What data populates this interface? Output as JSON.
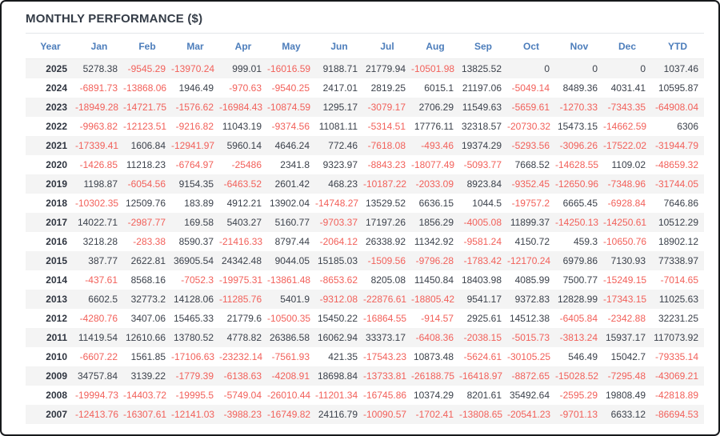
{
  "title": "MONTHLY PERFORMANCE ($)",
  "colors": {
    "header_text": "#4c7dbb",
    "negative": "#f2605a",
    "positive": "#3b414b",
    "year_text": "#2f3540",
    "row_stripe": "#f4f4f4",
    "title_text": "#343c47"
  },
  "table": {
    "columns": [
      "Year",
      "Jan",
      "Feb",
      "Mar",
      "Apr",
      "May",
      "Jun",
      "Jul",
      "Aug",
      "Sep",
      "Oct",
      "Nov",
      "Dec",
      "YTD"
    ],
    "rows": [
      {
        "year": "2025",
        "values": [
          "5278.38",
          "-9545.29",
          "-13970.24",
          "999.01",
          "-16016.59",
          "9188.71",
          "21779.94",
          "-10501.98",
          "13825.52",
          "0",
          "0",
          "0",
          "1037.46"
        ]
      },
      {
        "year": "2024",
        "values": [
          "-6891.73",
          "-13868.06",
          "1946.49",
          "-970.63",
          "-9540.25",
          "2417.01",
          "2819.25",
          "6015.1",
          "21197.06",
          "-5049.14",
          "8489.36",
          "4031.41",
          "10595.87"
        ]
      },
      {
        "year": "2023",
        "values": [
          "-18949.28",
          "-14721.75",
          "-1576.62",
          "-16984.43",
          "-10874.59",
          "1295.17",
          "-3079.17",
          "2706.29",
          "11549.63",
          "-5659.61",
          "-1270.33",
          "-7343.35",
          "-64908.04"
        ]
      },
      {
        "year": "2022",
        "values": [
          "-9963.82",
          "-12123.51",
          "-9216.82",
          "11043.19",
          "-9374.56",
          "11081.11",
          "-5314.51",
          "17776.11",
          "32318.57",
          "-20730.32",
          "15473.15",
          "-14662.59",
          "6306"
        ]
      },
      {
        "year": "2021",
        "values": [
          "-17339.41",
          "1606.84",
          "-12941.97",
          "5960.14",
          "4646.24",
          "772.46",
          "-7618.08",
          "-493.46",
          "19374.29",
          "-5293.56",
          "-3096.26",
          "-17522.02",
          "-31944.79"
        ]
      },
      {
        "year": "2020",
        "values": [
          "-1426.85",
          "11218.23",
          "-6764.97",
          "-25486",
          "2341.8",
          "9323.97",
          "-8843.23",
          "-18077.49",
          "-5093.77",
          "7668.52",
          "-14628.55",
          "1109.02",
          "-48659.32"
        ]
      },
      {
        "year": "2019",
        "values": [
          "1198.87",
          "-6054.56",
          "9154.35",
          "-6463.52",
          "2601.42",
          "468.23",
          "-10187.22",
          "-2033.09",
          "8923.84",
          "-9352.45",
          "-12650.96",
          "-7348.96",
          "-31744.05"
        ]
      },
      {
        "year": "2018",
        "values": [
          "-10302.35",
          "12509.76",
          "183.89",
          "4912.21",
          "13902.04",
          "-14748.27",
          "13529.52",
          "6636.15",
          "1044.5",
          "-19757.2",
          "6665.45",
          "-6928.84",
          "7646.86"
        ]
      },
      {
        "year": "2017",
        "values": [
          "14022.71",
          "-2987.77",
          "169.58",
          "5403.27",
          "5160.77",
          "-9703.37",
          "17197.26",
          "1856.29",
          "-4005.08",
          "11899.37",
          "-14250.13",
          "-14250.61",
          "10512.29"
        ]
      },
      {
        "year": "2016",
        "values": [
          "3218.28",
          "-283.38",
          "8590.37",
          "-21416.33",
          "8797.44",
          "-2064.12",
          "26338.92",
          "11342.92",
          "-9581.24",
          "4150.72",
          "459.3",
          "-10650.76",
          "18902.12"
        ]
      },
      {
        "year": "2015",
        "values": [
          "387.77",
          "2622.81",
          "36905.54",
          "24342.48",
          "9044.05",
          "15185.03",
          "-1509.56",
          "-9796.28",
          "-1783.42",
          "-12170.24",
          "6979.86",
          "7130.93",
          "77338.97"
        ]
      },
      {
        "year": "2014",
        "values": [
          "-437.61",
          "8568.16",
          "-7052.3",
          "-19975.31",
          "-13861.48",
          "-8653.62",
          "8205.08",
          "11450.84",
          "18403.98",
          "4085.99",
          "7500.77",
          "-15249.15",
          "-7014.65"
        ]
      },
      {
        "year": "2013",
        "values": [
          "6602.5",
          "32773.2",
          "14128.06",
          "-11285.76",
          "5401.9",
          "-9312.08",
          "-22876.61",
          "-18805.42",
          "9541.17",
          "9372.83",
          "12828.99",
          "-17343.15",
          "11025.63"
        ]
      },
      {
        "year": "2012",
        "values": [
          "-4280.76",
          "3407.06",
          "15465.33",
          "21779.6",
          "-10500.35",
          "15450.22",
          "-16864.55",
          "-914.57",
          "2925.61",
          "14512.38",
          "-6405.84",
          "-2342.88",
          "32231.25"
        ]
      },
      {
        "year": "2011",
        "values": [
          "11419.54",
          "12610.66",
          "13780.52",
          "4778.82",
          "26386.58",
          "16062.94",
          "33373.17",
          "-6408.36",
          "-2038.15",
          "-5015.73",
          "-3813.24",
          "15937.17",
          "117073.92"
        ]
      },
      {
        "year": "2010",
        "values": [
          "-6607.22",
          "1561.85",
          "-17106.63",
          "-23232.14",
          "-7561.93",
          "421.35",
          "-17543.23",
          "10873.48",
          "-5624.61",
          "-30105.25",
          "546.49",
          "15042.7",
          "-79335.14"
        ]
      },
      {
        "year": "2009",
        "values": [
          "34757.84",
          "3139.22",
          "-1779.39",
          "-6138.63",
          "-4208.91",
          "18698.84",
          "-13733.81",
          "-26188.75",
          "-16418.97",
          "-8872.65",
          "-15028.52",
          "-7295.48",
          "-43069.21"
        ]
      },
      {
        "year": "2008",
        "values": [
          "-19994.73",
          "-14403.72",
          "-19995.5",
          "-5749.04",
          "-26010.44",
          "-11201.34",
          "-16745.86",
          "10374.29",
          "8201.61",
          "35492.64",
          "-2595.29",
          "19808.49",
          "-42818.89"
        ]
      },
      {
        "year": "2007",
        "values": [
          "-12413.76",
          "-16307.61",
          "-12141.03",
          "-3988.23",
          "-16749.82",
          "24116.79",
          "-10090.57",
          "-1702.41",
          "-13808.65",
          "-20541.23",
          "-9701.13",
          "6633.12",
          "-86694.53"
        ]
      }
    ]
  }
}
